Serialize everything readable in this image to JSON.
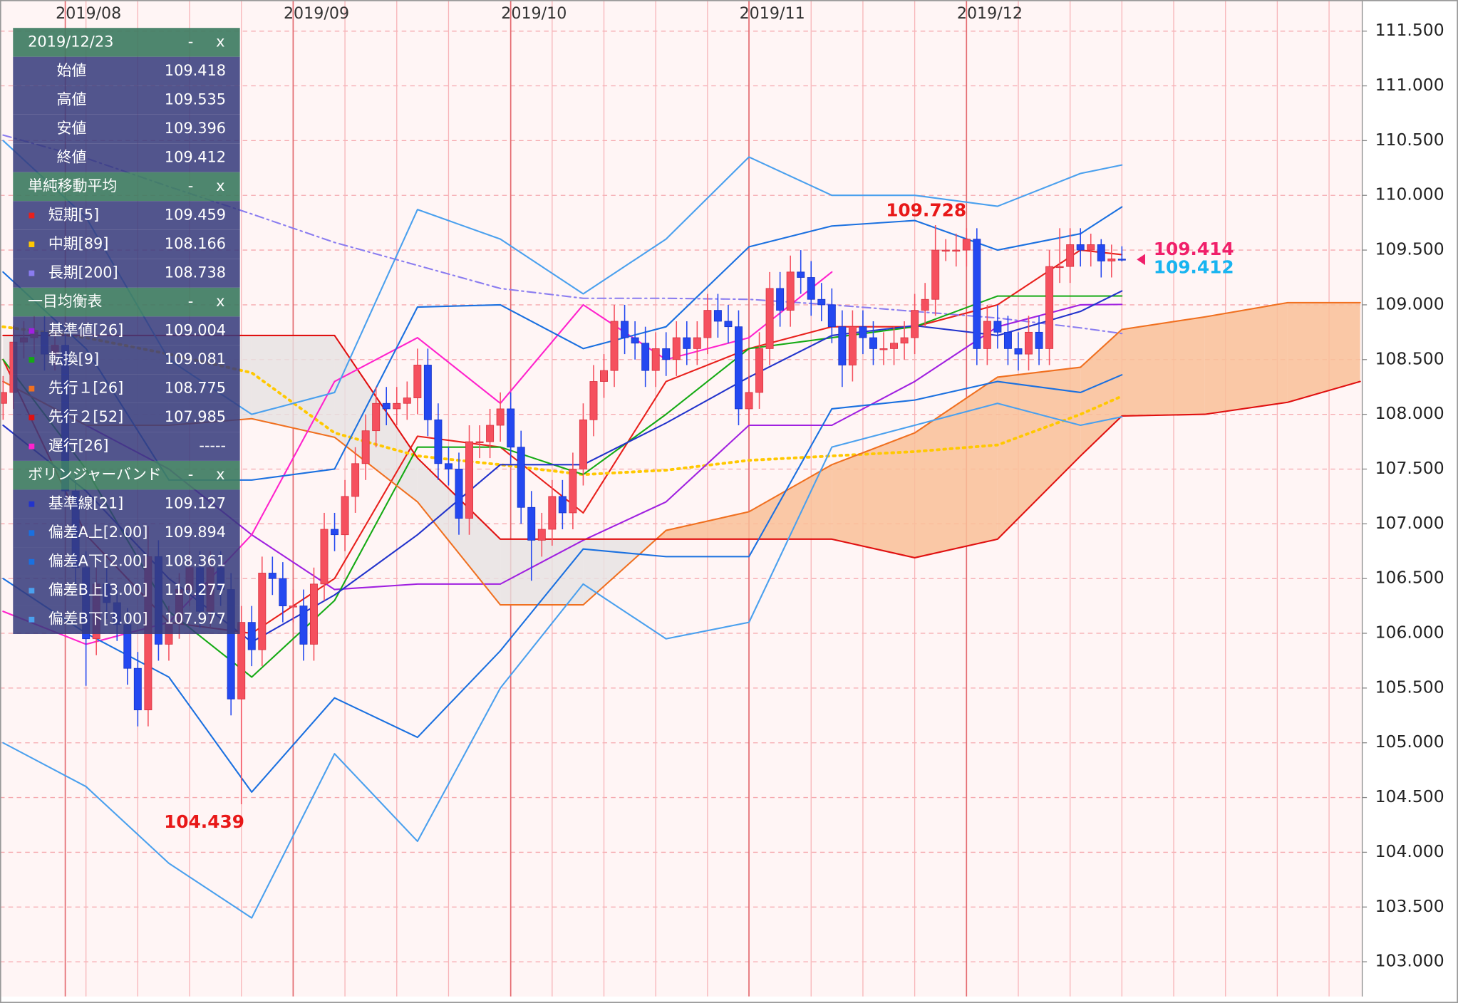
{
  "chart_data": {
    "type": "candlestick",
    "xlim": [
      -0.3,
      131.2
    ],
    "ylim": [
      102.7,
      111.75
    ],
    "xticks": [
      {
        "value": 6,
        "label": "2019/08"
      },
      {
        "value": 28,
        "label": "2019/09"
      },
      {
        "value": 49,
        "label": "2019/10"
      },
      {
        "value": 72,
        "label": "2019/11"
      },
      {
        "value": 93,
        "label": "2019/12"
      }
    ],
    "xgrid": [
      8,
      13,
      18,
      23,
      33,
      38,
      43,
      53,
      58,
      63,
      68,
      78,
      83,
      88,
      98,
      103,
      108,
      113,
      118,
      123,
      128
    ],
    "yticks": [
      {
        "value": 103,
        "label": "103.000"
      },
      {
        "value": 103.5,
        "label": "103.500"
      },
      {
        "value": 104,
        "label": "104.000"
      },
      {
        "value": 104.5,
        "label": "104.500"
      },
      {
        "value": 105,
        "label": "105.000"
      },
      {
        "value": 105.5,
        "label": "105.500"
      },
      {
        "value": 106,
        "label": "106.000"
      },
      {
        "value": 106.5,
        "label": "106.500"
      },
      {
        "value": 107,
        "label": "107.000"
      },
      {
        "value": 107.5,
        "label": "107.500"
      },
      {
        "value": 108,
        "label": "108.000"
      },
      {
        "value": 108.5,
        "label": "108.500"
      },
      {
        "value": 109,
        "label": "109.000"
      },
      {
        "value": 109.5,
        "label": "109.500"
      },
      {
        "value": 110,
        "label": "110.000"
      },
      {
        "value": 110.5,
        "label": "110.500"
      },
      {
        "value": 111,
        "label": "111.000"
      },
      {
        "value": 111.5,
        "label": "111.500"
      }
    ],
    "grid": true,
    "up_color": "#f5505e",
    "down_color": "#2448f0",
    "open": [
      108.1,
      108.2,
      108.66,
      108.7,
      108.75,
      108.55,
      108.63,
      107.3,
      106.6,
      105.95,
      106.45,
      106.28,
      106.08,
      105.68,
      105.3,
      106.7,
      105.9,
      106.1,
      106.4,
      106.6,
      106.2,
      106.6,
      106.4,
      105.4,
      106.1,
      105.85,
      106.55,
      106.5,
      106.25,
      106.25,
      105.9,
      106.45,
      106.95,
      106.9,
      107.25,
      107.55,
      107.85,
      108.1,
      108.05,
      108.1,
      108.15,
      108.45,
      107.95,
      107.55,
      107.5,
      107.05,
      107.75,
      107.75,
      107.9,
      108.05,
      107.7,
      107.15,
      106.85,
      106.95,
      107.25,
      107.1,
      107.5,
      107.95,
      108.3,
      108.4,
      108.85,
      108.7,
      108.65,
      108.4,
      108.6,
      108.5,
      108.7,
      108.6,
      108.7,
      108.95,
      108.85,
      108.8,
      108.05,
      108.2,
      108.6,
      109.15,
      108.95,
      109.3,
      109.25,
      109.05,
      109.0,
      108.8,
      108.45,
      108.8,
      108.7,
      108.6,
      108.6,
      108.65,
      108.7,
      108.95,
      109.05,
      109.5,
      109.5,
      109.5,
      109.6,
      108.6,
      108.85,
      108.75,
      108.6,
      108.55,
      108.75,
      108.6,
      109.35,
      109.35,
      109.55,
      109.5,
      109.55,
      109.4,
      109.418
    ],
    "high": [
      108.35,
      108.81,
      108.85,
      108.9,
      108.9,
      108.78,
      108.78,
      107.45,
      106.75,
      106.6,
      106.6,
      106.43,
      106.23,
      105.83,
      106.98,
      106.85,
      106.25,
      106.55,
      106.75,
      106.75,
      106.75,
      106.75,
      106.55,
      106.25,
      106.25,
      106.7,
      106.7,
      106.65,
      106.4,
      106.4,
      106.6,
      107.1,
      107.1,
      107.4,
      107.7,
      108.0,
      108.25,
      108.25,
      108.25,
      108.3,
      108.6,
      108.6,
      108.1,
      107.7,
      107.65,
      107.9,
      107.9,
      108.05,
      108.2,
      108.2,
      107.85,
      107.3,
      107.1,
      107.4,
      107.4,
      107.65,
      108.1,
      108.45,
      108.55,
      109.0,
      109.0,
      108.85,
      108.8,
      108.75,
      108.75,
      108.85,
      108.85,
      108.85,
      109.1,
      109.1,
      109.0,
      108.95,
      108.35,
      108.75,
      109.3,
      109.3,
      109.45,
      109.5,
      109.4,
      109.2,
      109.15,
      108.95,
      108.95,
      108.95,
      108.85,
      108.75,
      108.8,
      108.85,
      109.1,
      109.2,
      109.728,
      109.6,
      109.65,
      109.7,
      109.7,
      109.0,
      109.0,
      108.9,
      108.75,
      108.9,
      108.9,
      109.5,
      109.7,
      109.7,
      109.7,
      109.65,
      109.6,
      109.55,
      109.535
    ],
    "low": [
      107.95,
      108.05,
      108.51,
      108.55,
      108.4,
      108.4,
      107.15,
      106.45,
      105.52,
      105.8,
      106.13,
      105.93,
      105.53,
      105.15,
      105.15,
      105.75,
      105.75,
      105.95,
      106.25,
      106.05,
      106.05,
      106.25,
      105.25,
      104.439,
      105.7,
      105.7,
      106.35,
      106.1,
      106.1,
      105.75,
      105.75,
      106.3,
      106.75,
      106.75,
      107.1,
      107.4,
      107.7,
      107.9,
      107.9,
      107.95,
      108.0,
      107.8,
      107.4,
      107.35,
      106.9,
      106.9,
      107.6,
      107.6,
      107.75,
      107.55,
      107.0,
      106.48,
      106.7,
      106.8,
      106.95,
      106.95,
      107.35,
      107.8,
      108.15,
      108.25,
      108.55,
      108.5,
      108.25,
      108.25,
      108.35,
      108.35,
      108.45,
      108.45,
      108.55,
      108.7,
      108.65,
      107.9,
      107.9,
      108.05,
      108.45,
      108.8,
      108.8,
      109.1,
      108.9,
      108.85,
      108.65,
      108.25,
      108.3,
      108.55,
      108.45,
      108.45,
      108.45,
      108.5,
      108.55,
      108.8,
      108.9,
      109.4,
      109.35,
      109.35,
      108.45,
      108.45,
      108.6,
      108.45,
      108.4,
      108.4,
      108.45,
      108.45,
      109.2,
      109.2,
      109.35,
      109.35,
      109.25,
      109.25,
      109.396
    ],
    "close": [
      108.2,
      108.66,
      108.7,
      108.75,
      108.55,
      108.63,
      107.3,
      106.6,
      105.95,
      106.45,
      106.28,
      106.08,
      105.68,
      105.3,
      106.7,
      105.9,
      106.1,
      106.4,
      106.6,
      106.2,
      106.6,
      106.4,
      105.4,
      106.1,
      105.85,
      106.55,
      106.5,
      106.25,
      106.25,
      105.9,
      106.45,
      106.95,
      106.9,
      107.25,
      107.55,
      107.85,
      108.1,
      108.05,
      108.1,
      108.15,
      108.45,
      107.95,
      107.55,
      107.5,
      107.05,
      107.75,
      107.75,
      107.9,
      108.05,
      107.7,
      107.15,
      106.85,
      106.95,
      107.25,
      107.1,
      107.5,
      107.95,
      108.3,
      108.4,
      108.85,
      108.7,
      108.65,
      108.4,
      108.6,
      108.5,
      108.7,
      108.6,
      108.7,
      108.95,
      108.85,
      108.8,
      108.05,
      108.2,
      108.6,
      109.15,
      108.95,
      109.3,
      109.25,
      109.05,
      109.0,
      108.8,
      108.45,
      108.8,
      108.7,
      108.6,
      108.6,
      108.65,
      108.7,
      108.95,
      109.05,
      109.5,
      109.5,
      109.5,
      109.6,
      108.6,
      108.85,
      108.75,
      108.6,
      108.55,
      108.75,
      108.6,
      109.35,
      109.35,
      109.55,
      109.5,
      109.55,
      109.4,
      109.42,
      109.412
    ],
    "line_x": [
      0,
      8,
      16,
      24,
      32,
      40,
      48,
      56,
      64,
      72,
      80,
      88,
      96,
      104,
      108,
      116,
      124,
      131
    ],
    "cloud_colors": {
      "up": "#f9bf98",
      "down": "#e6e2e2"
    },
    "series": [
      {
        "name": "短期[5]",
        "color": "#e8201c",
        "values": [
          108.5,
          106.9,
          106.1,
          106.0,
          106.5,
          107.8,
          107.7,
          107.1,
          108.3,
          108.6,
          108.8,
          108.8,
          109.0,
          109.5,
          109.459,
          null,
          null,
          null
        ]
      },
      {
        "name": "中期[89]",
        "color": "#ffc800",
        "dash": "dotted",
        "values": [
          108.8,
          108.7,
          108.55,
          108.38,
          107.83,
          107.62,
          107.54,
          107.45,
          107.49,
          107.58,
          107.62,
          107.66,
          107.72,
          108.0,
          108.166,
          null,
          null,
          null
        ]
      },
      {
        "name": "長期[200]",
        "color": "#8a7cf0",
        "dash": "dashdot",
        "values": [
          110.55,
          110.34,
          110.08,
          109.83,
          109.57,
          109.36,
          109.15,
          109.06,
          109.06,
          109.05,
          109.0,
          108.94,
          108.88,
          108.79,
          108.738,
          null,
          null,
          null
        ]
      },
      {
        "name": "基準値[26]",
        "color": "#a020e0",
        "values": [
          108.3,
          107.9,
          107.5,
          106.9,
          106.4,
          106.45,
          106.45,
          106.85,
          107.2,
          107.9,
          107.9,
          108.3,
          108.8,
          109.0,
          109.004,
          null,
          null,
          null
        ]
      },
      {
        "name": "転換[9]",
        "color": "#14aa14",
        "values": [
          108.5,
          107.5,
          106.2,
          105.6,
          106.3,
          107.7,
          107.7,
          107.45,
          108.0,
          108.6,
          108.7,
          108.8,
          109.08,
          109.08,
          109.081,
          null,
          null,
          null
        ]
      },
      {
        "name": "先行１[26]",
        "color": "#f07020",
        "cloud": true,
        "values": [
          108.3,
          107.9,
          107.9,
          107.96,
          107.79,
          107.2,
          106.26,
          106.26,
          106.94,
          107.11,
          107.54,
          107.83,
          108.34,
          108.43,
          108.775,
          108.89,
          109.02,
          109.02
        ]
      },
      {
        "name": "先行２[52]",
        "color": "#e01010",
        "cloud": true,
        "values": [
          108.72,
          108.72,
          108.72,
          108.72,
          108.72,
          107.6,
          106.86,
          106.86,
          106.86,
          106.86,
          106.86,
          106.69,
          106.86,
          107.62,
          107.985,
          108.0,
          108.11,
          108.3
        ]
      },
      {
        "name": "遅行[26]",
        "color": "#ff22cc",
        "current_label": "-----",
        "values": [
          106.2,
          105.9,
          106.1,
          106.9,
          108.3,
          108.7,
          108.1,
          109.0,
          108.5,
          108.7,
          109.3,
          null,
          null,
          null,
          null,
          null,
          null,
          null
        ]
      },
      {
        "name": "基準線[21]",
        "color": "#2233cc",
        "values": [
          107.9,
          107.3,
          106.5,
          105.92,
          106.35,
          106.9,
          107.54,
          107.54,
          107.92,
          108.34,
          108.72,
          108.81,
          108.72,
          108.94,
          109.127,
          null,
          null,
          null
        ]
      },
      {
        "name": "偏差A上[2.00]",
        "color": "#1a70e0",
        "values": [
          109.3,
          108.6,
          107.4,
          107.4,
          107.5,
          108.98,
          109.0,
          108.6,
          108.8,
          109.53,
          109.72,
          109.77,
          109.5,
          109.65,
          109.894,
          null,
          null,
          null
        ]
      },
      {
        "name": "偏差A下[2.00]",
        "color": "#1a70e0",
        "values": [
          106.5,
          106.0,
          105.6,
          104.55,
          105.41,
          105.05,
          105.84,
          106.77,
          106.7,
          106.7,
          108.05,
          108.13,
          108.3,
          108.2,
          108.361,
          null,
          null,
          null
        ]
      },
      {
        "name": "偏差B上[3.00]",
        "color": "#4aa0ee",
        "values": [
          110.5,
          109.8,
          108.5,
          108.0,
          108.2,
          109.87,
          109.6,
          109.1,
          109.6,
          110.35,
          110.0,
          110.0,
          109.9,
          110.2,
          110.277,
          null,
          null,
          null
        ]
      },
      {
        "name": "偏差B下[3.00]",
        "color": "#4aa0ee",
        "values": [
          105.0,
          104.6,
          103.9,
          103.4,
          104.9,
          104.1,
          105.5,
          106.45,
          105.95,
          106.1,
          107.7,
          107.9,
          108.1,
          107.9,
          107.977,
          null,
          null,
          null
        ]
      }
    ],
    "annotations": [
      {
        "value": 109.728,
        "x": 90,
        "color": "#e81818",
        "place": "above"
      },
      {
        "value": 104.439,
        "x": 23,
        "color": "#e81818",
        "place": "below"
      },
      {
        "value": 109.414,
        "x": 108,
        "color": "#f0206a",
        "place": "right",
        "marker": true
      },
      {
        "value": 109.412,
        "x": 108,
        "color": "#18b4f0",
        "place": "right"
      }
    ]
  },
  "panels": [
    {
      "title": "2019/12/23",
      "buttons": [
        "-",
        "x"
      ],
      "items": [
        "始値",
        "高値",
        "安値",
        "終値"
      ]
    },
    {
      "title": "単純移動平均",
      "buttons": [
        "-",
        "x"
      ]
    },
    {
      "title": "一目均衡表",
      "buttons": [
        "-",
        "x"
      ]
    },
    {
      "title": "ボリンジャーバンド",
      "buttons": [
        "-",
        "x"
      ]
    }
  ]
}
